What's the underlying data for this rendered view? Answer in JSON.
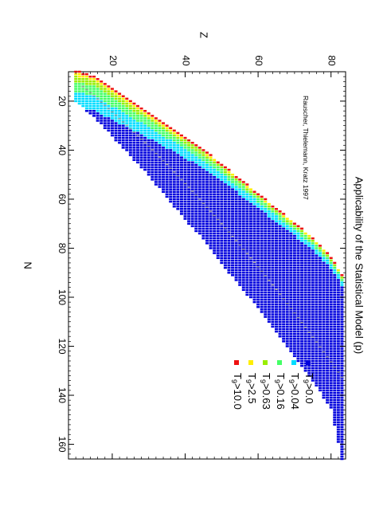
{
  "chart_data": {
    "type": "scatter",
    "title": "Applicability of the Statistical Model (p)",
    "credit": "Rauscher, Thielemann, Kratz 1997",
    "xlabel": "N",
    "ylabel": "Z",
    "xlim": [
      8,
      166
    ],
    "ylim": [
      8,
      84
    ],
    "xticks": [
      20,
      40,
      60,
      80,
      100,
      120,
      140,
      160
    ],
    "yticks": [
      20,
      40,
      60,
      80
    ],
    "grid": false,
    "legend_position": "bottom-left",
    "legend": [
      {
        "label_base": "T",
        "label_sub": "9",
        "label_rest": ">0.0",
        "color": "#0000dd"
      },
      {
        "label_base": "T",
        "label_sub": "9",
        "label_rest": ">0.04",
        "color": "#00ddff"
      },
      {
        "label_base": "T",
        "label_sub": "9",
        "label_rest": ">0.16",
        "color": "#44ff66"
      },
      {
        "label_base": "T",
        "label_sub": "9",
        "label_rest": ">0.63",
        "color": "#99ee00"
      },
      {
        "label_base": "T",
        "label_sub": "9",
        "label_rest": ">2.5",
        "color": "#ffee00"
      },
      {
        "label_base": "T",
        "label_sub": "9",
        "label_rest": ">10.0",
        "color": "#ee1111"
      }
    ],
    "stable_marker_color": "#9a9a9a",
    "rows": [
      {
        "z": 10,
        "n_min": 8,
        "n_max": 20
      },
      {
        "z": 15,
        "n_min": 10,
        "n_max": 26
      },
      {
        "z": 20,
        "n_min": 15,
        "n_max": 34
      },
      {
        "z": 25,
        "n_min": 20,
        "n_max": 42
      },
      {
        "z": 30,
        "n_min": 25,
        "n_max": 50
      },
      {
        "z": 35,
        "n_min": 30,
        "n_max": 59
      },
      {
        "z": 40,
        "n_min": 35,
        "n_max": 68
      },
      {
        "z": 45,
        "n_min": 40,
        "n_max": 76
      },
      {
        "z": 50,
        "n_min": 46,
        "n_max": 86
      },
      {
        "z": 55,
        "n_min": 52,
        "n_max": 95
      },
      {
        "z": 60,
        "n_min": 58,
        "n_max": 104
      },
      {
        "z": 65,
        "n_min": 64,
        "n_max": 114
      },
      {
        "z": 70,
        "n_min": 70,
        "n_max": 124
      },
      {
        "z": 75,
        "n_min": 76,
        "n_max": 134
      },
      {
        "z": 80,
        "n_min": 84,
        "n_max": 145
      },
      {
        "z": 83,
        "n_min": 91,
        "n_max": 166
      }
    ],
    "bands": [
      {
        "width": 2.2,
        "color": "#00ddff"
      },
      {
        "width": 1.4,
        "color": "#44ff66"
      },
      {
        "width": 0.8,
        "color": "#99ee00"
      },
      {
        "width": 0.4,
        "color": "#ffee00"
      },
      {
        "width": 0.2,
        "color": "#ee1111"
      }
    ],
    "band_scale_z": [
      10,
      35,
      55,
      83
    ],
    "band_scale_factor": [
      3.0,
      1.8,
      1.2,
      0.8
    ]
  }
}
